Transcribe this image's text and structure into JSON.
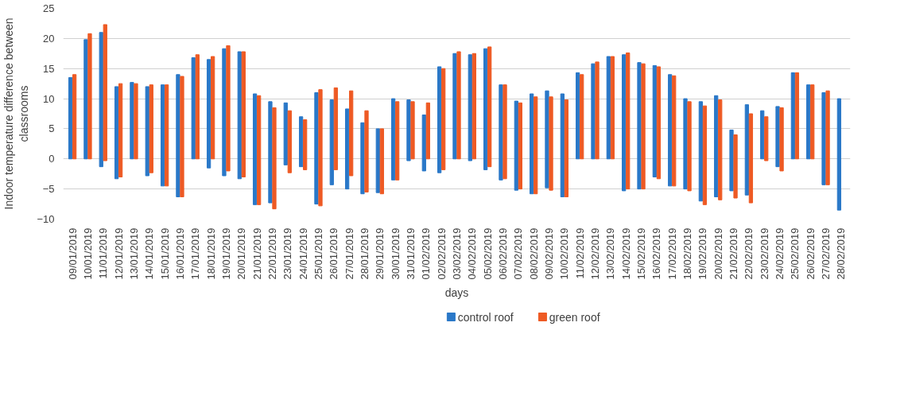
{
  "chart_data": {
    "type": "bar",
    "xlabel": "days",
    "ylabel": "Indoor temperature difference between classrooms",
    "categories": [
      "09/01/2019",
      "10/01/2019",
      "11/01/2019",
      "12/01/2019",
      "13/01/2019",
      "14/01/2019",
      "15/01/2019",
      "16/01/2019",
      "17/01/2019",
      "18/01/2019",
      "19/01/2019",
      "20/01/2019",
      "21/01/2019",
      "22/01/2019",
      "23/01/2019",
      "24/01/2019",
      "25/01/2019",
      "26/01/2019",
      "27/01/2019",
      "28/01/2019",
      "29/01/2019",
      "30/01/2019",
      "31/01/2019",
      "01/02/2019",
      "02/02/2019",
      "03/02/2019",
      "04/02/2019",
      "05/02/2019",
      "06/02/2019",
      "07/02/2019",
      "08/02/2019",
      "09/02/2019",
      "10/02/2019",
      "11/02/2019",
      "12/02/2019",
      "13/02/2019",
      "14/02/2019",
      "15/02/2019",
      "16/02/2019",
      "17/02/2019",
      "18/02/2019",
      "19/02/2019",
      "20/02/2019",
      "21/02/2019",
      "22/02/2019",
      "23/02/2019",
      "24/02/2019",
      "25/02/2019",
      "26/02/2019",
      "27/02/2019",
      "28/02/2019"
    ],
    "series": [
      {
        "name": "control roof",
        "color": "#2a78c8",
        "base": [
          0,
          0,
          -1.3,
          -3.3,
          0,
          -2.8,
          -4.5,
          -6.3,
          0,
          -1.5,
          -2.8,
          -3.3,
          -7.6,
          -7.3,
          -1,
          -1.3,
          -7.5,
          -4.3,
          -5,
          -5.8,
          -5.6,
          -3.5,
          -0.3,
          -2,
          -2.3,
          0,
          -0.3,
          -1.8,
          -3.5,
          -5.2,
          -5.8,
          -4.8,
          -6.3,
          0,
          0,
          0,
          -5.3,
          -5,
          -3,
          -4.5,
          -5,
          -7,
          -6.3,
          -5.3,
          -6,
          0,
          -1.3,
          0,
          0,
          -4.3,
          -8.5
        ],
        "values": [
          13.5,
          19.8,
          22.3,
          15.3,
          12.7,
          14.8,
          16.8,
          20.3,
          16.8,
          18,
          21.1,
          21.1,
          18.4,
          16.8,
          10.3,
          8.3,
          18.5,
          14.1,
          13.3,
          11.8,
          10.6,
          13.5,
          10.1,
          9.3,
          17.6,
          17.5,
          17.6,
          20.1,
          15.8,
          14.8,
          16.6,
          16.1,
          17.1,
          14.3,
          15.8,
          17,
          22.6,
          21,
          18.5,
          18.5,
          15,
          16.5,
          16.8,
          10.1,
          15,
          8,
          10,
          14.3,
          12.3,
          15.3,
          18.5
        ]
      },
      {
        "name": "green roof",
        "color": "#ee5a24",
        "base": [
          0,
          0,
          -0.3,
          -3,
          0,
          -2.3,
          -4.5,
          -6.3,
          0,
          0,
          -2,
          -3,
          -7.6,
          -8.3,
          -2.3,
          -1.8,
          -7.8,
          -1.8,
          -2.8,
          -5.5,
          -5.8,
          -3.5,
          0,
          0,
          -1.8,
          0,
          0,
          -1.3,
          -3.3,
          -5,
          -5.8,
          -5.2,
          -6.3,
          0,
          0,
          0,
          -5,
          -5,
          -3.3,
          -4.5,
          -5.3,
          -7.6,
          -6.8,
          -6.5,
          -7.3,
          -0.3,
          -2,
          0,
          0,
          -4.3,
          null
        ],
        "values": [
          14,
          20.8,
          22.6,
          15.5,
          12.5,
          14.6,
          16.8,
          20,
          17.3,
          17,
          20.8,
          20.8,
          18.1,
          16.8,
          10.3,
          8.3,
          19.3,
          13.6,
          14.1,
          13.5,
          10.8,
          13,
          9.5,
          9.3,
          16.8,
          17.8,
          17.5,
          19.9,
          15.6,
          14.3,
          16.1,
          15.5,
          16.1,
          14,
          16.1,
          17,
          22.6,
          20.8,
          18.6,
          18.3,
          14.8,
          16.4,
          16.6,
          10.5,
          14.8,
          7.3,
          10.5,
          14.3,
          12.3,
          15.6,
          null
        ]
      }
    ],
    "ylim": [
      -10,
      25
    ],
    "yticks": [
      -10,
      -5,
      0,
      5,
      10,
      15,
      20,
      25
    ],
    "grid": "y",
    "legend": "bottom"
  }
}
